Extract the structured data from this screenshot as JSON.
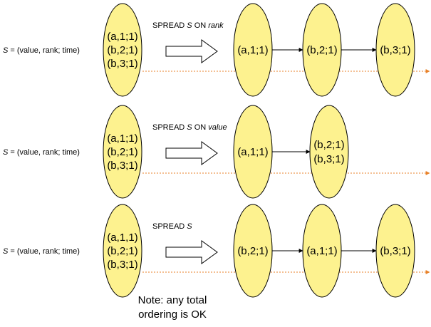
{
  "rows": [
    {
      "s_var": "S",
      "s_def": " = (value, rank; time)",
      "input_items": [
        "(a,1;1)",
        "(b,2;1)",
        "(b,3;1)"
      ],
      "op_prefix": "SPREAD ",
      "op_var": "S",
      "op_on": " ON ",
      "op_attr": "rank",
      "outputs": [
        {
          "items": [
            "(a,1;1)"
          ]
        },
        {
          "items": [
            "(b,2;1)"
          ]
        },
        {
          "items": [
            "(b,3;1)"
          ]
        }
      ]
    },
    {
      "s_var": "S",
      "s_def": " = (value, rank; time)",
      "input_items": [
        "(a,1;1)",
        "(b,2;1)",
        "(b,3;1)"
      ],
      "op_prefix": "SPREAD ",
      "op_var": "S",
      "op_on": " ON ",
      "op_attr": "value",
      "outputs": [
        {
          "items": [
            "(a,1;1)"
          ]
        },
        {
          "items": [
            "(b,2;1)",
            "(b,3;1)"
          ]
        }
      ]
    },
    {
      "s_var": "S",
      "s_def": " = (value, rank; time)",
      "input_items": [
        "(a,1,1)",
        "(b,2;1)",
        "(b,3;1)"
      ],
      "op_prefix": "SPREAD ",
      "op_var": "S",
      "op_on": "",
      "op_attr": "",
      "outputs": [
        {
          "items": [
            "(b,2;1)"
          ]
        },
        {
          "items": [
            "(a,1;1)"
          ]
        },
        {
          "items": [
            "(b,3;1)"
          ]
        }
      ]
    }
  ],
  "note": [
    "Note: any total",
    "ordering is OK"
  ],
  "colors": {
    "ellipse_fill": "#fdf28f",
    "ellipse_stroke": "#000000",
    "timeline": "#e8822a",
    "arrow": "#000000"
  }
}
